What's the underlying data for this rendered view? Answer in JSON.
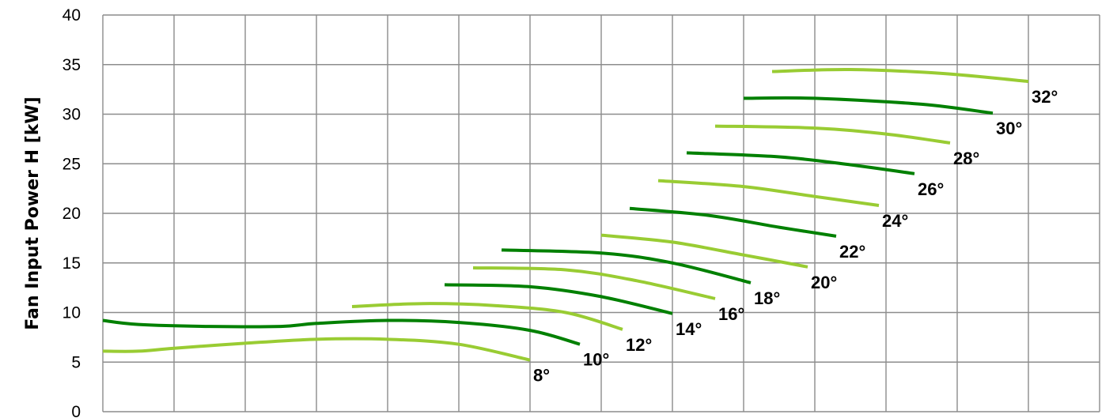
{
  "chart_data": {
    "type": "line",
    "title": "",
    "xlabel": "",
    "ylabel": "Fan Input Power H [kW]",
    "ylim": [
      0,
      40
    ],
    "yticks": [
      "0",
      "5",
      "10",
      "15",
      "20",
      "25",
      "30",
      "35",
      "40"
    ],
    "xlim": [
      0,
      14
    ],
    "grid": true,
    "legend": "none",
    "colors": {
      "light": "#99CC33",
      "dark": "#008000"
    },
    "series": [
      {
        "name": "8°",
        "color": "#99CC33",
        "points": [
          [
            0.0,
            6.1
          ],
          [
            0.5,
            6.1
          ],
          [
            1.0,
            6.4
          ],
          [
            2.0,
            6.9
          ],
          [
            3.0,
            7.3
          ],
          [
            4.0,
            7.3
          ],
          [
            5.0,
            6.8
          ],
          [
            6.0,
            5.2
          ]
        ]
      },
      {
        "name": "10°",
        "color": "#008000",
        "points": [
          [
            0.0,
            9.2
          ],
          [
            0.5,
            8.8
          ],
          [
            1.5,
            8.6
          ],
          [
            2.5,
            8.6
          ],
          [
            3.0,
            8.9
          ],
          [
            4.0,
            9.2
          ],
          [
            5.0,
            9.0
          ],
          [
            6.0,
            8.2
          ],
          [
            6.7,
            6.8
          ]
        ]
      },
      {
        "name": "12°",
        "color": "#99CC33",
        "points": [
          [
            3.5,
            10.6
          ],
          [
            4.5,
            10.9
          ],
          [
            5.5,
            10.7
          ],
          [
            6.5,
            10.0
          ],
          [
            7.3,
            8.3
          ]
        ]
      },
      {
        "name": "14°",
        "color": "#008000",
        "points": [
          [
            4.8,
            12.8
          ],
          [
            6.0,
            12.6
          ],
          [
            7.0,
            11.6
          ],
          [
            8.0,
            9.9
          ]
        ]
      },
      {
        "name": "16°",
        "color": "#99CC33",
        "points": [
          [
            5.2,
            14.5
          ],
          [
            6.5,
            14.3
          ],
          [
            7.5,
            13.2
          ],
          [
            8.6,
            11.4
          ]
        ]
      },
      {
        "name": "18°",
        "color": "#008000",
        "points": [
          [
            5.6,
            16.3
          ],
          [
            7.0,
            16.0
          ],
          [
            8.0,
            15.0
          ],
          [
            9.1,
            13.0
          ]
        ]
      },
      {
        "name": "20°",
        "color": "#99CC33",
        "points": [
          [
            7.0,
            17.8
          ],
          [
            8.0,
            17.1
          ],
          [
            9.0,
            15.8
          ],
          [
            9.9,
            14.6
          ]
        ]
      },
      {
        "name": "22°",
        "color": "#008000",
        "points": [
          [
            7.4,
            20.5
          ],
          [
            8.5,
            19.8
          ],
          [
            9.5,
            18.6
          ],
          [
            10.3,
            17.7
          ]
        ]
      },
      {
        "name": "24°",
        "color": "#99CC33",
        "points": [
          [
            7.8,
            23.3
          ],
          [
            9.0,
            22.7
          ],
          [
            10.0,
            21.7
          ],
          [
            10.9,
            20.8
          ]
        ]
      },
      {
        "name": "26°",
        "color": "#008000",
        "points": [
          [
            8.2,
            26.1
          ],
          [
            9.5,
            25.7
          ],
          [
            10.5,
            24.9
          ],
          [
            11.4,
            24.0
          ]
        ]
      },
      {
        "name": "28°",
        "color": "#99CC33",
        "points": [
          [
            8.6,
            28.8
          ],
          [
            10.0,
            28.6
          ],
          [
            11.0,
            28.0
          ],
          [
            11.9,
            27.1
          ]
        ]
      },
      {
        "name": "30°",
        "color": "#008000",
        "points": [
          [
            9.0,
            31.6
          ],
          [
            10.0,
            31.6
          ],
          [
            11.5,
            31.0
          ],
          [
            12.5,
            30.1
          ]
        ]
      },
      {
        "name": "32°",
        "color": "#99CC33",
        "points": [
          [
            9.4,
            34.3
          ],
          [
            10.5,
            34.5
          ],
          [
            11.8,
            34.1
          ],
          [
            13.0,
            33.3
          ]
        ]
      }
    ]
  }
}
